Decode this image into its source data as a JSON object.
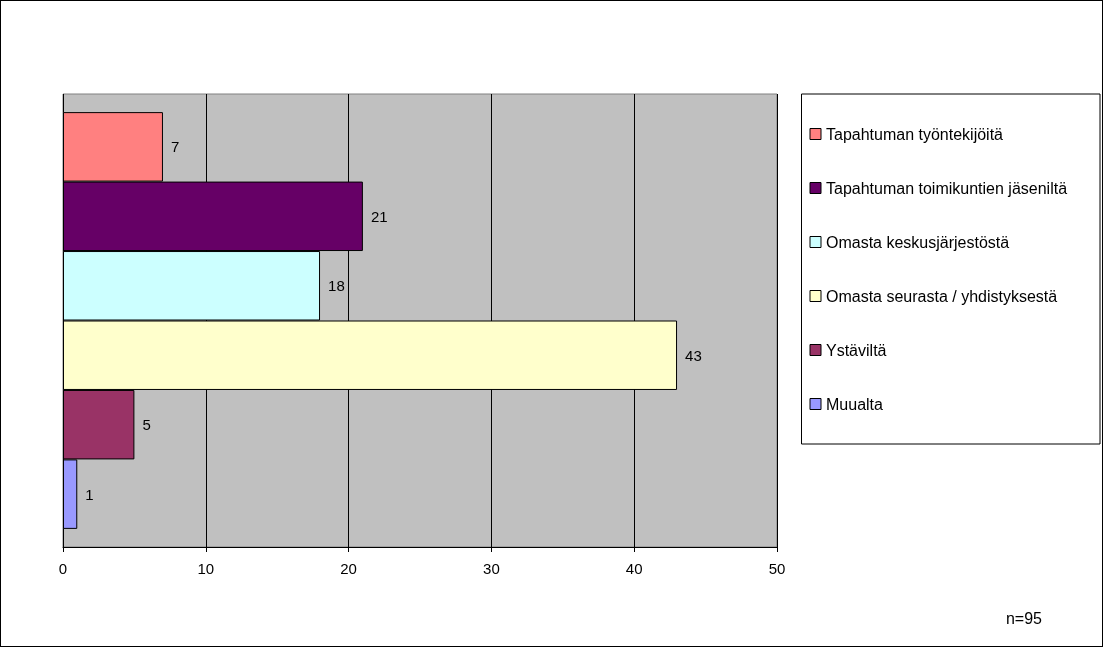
{
  "chart_data": {
    "type": "bar",
    "orientation": "horizontal",
    "categories": [
      null
    ],
    "series": [
      {
        "name": "Tapahtuman työntekijöitä",
        "color": "#ff8080",
        "values": [
          7
        ]
      },
      {
        "name": "Tapahtuman toimikuntien jäseniltä",
        "color": "#660066",
        "values": [
          21
        ]
      },
      {
        "name": "Omasta keskusjärjestöstä",
        "color": "#ccffff",
        "values": [
          18
        ]
      },
      {
        "name": "Omasta seurasta / yhdistyksestä",
        "color": "#ffffcc",
        "values": [
          43
        ]
      },
      {
        "name": "Ystäviltä",
        "color": "#993366",
        "values": [
          5
        ]
      },
      {
        "name": "Muualta",
        "color": "#9999ff",
        "values": [
          1
        ]
      }
    ],
    "xlim": [
      0,
      50
    ],
    "xticks": [
      0,
      10,
      20,
      30,
      40,
      50
    ],
    "grid": "x",
    "data_labels": true,
    "legend": "right",
    "annotations": [
      "n=95"
    ]
  }
}
